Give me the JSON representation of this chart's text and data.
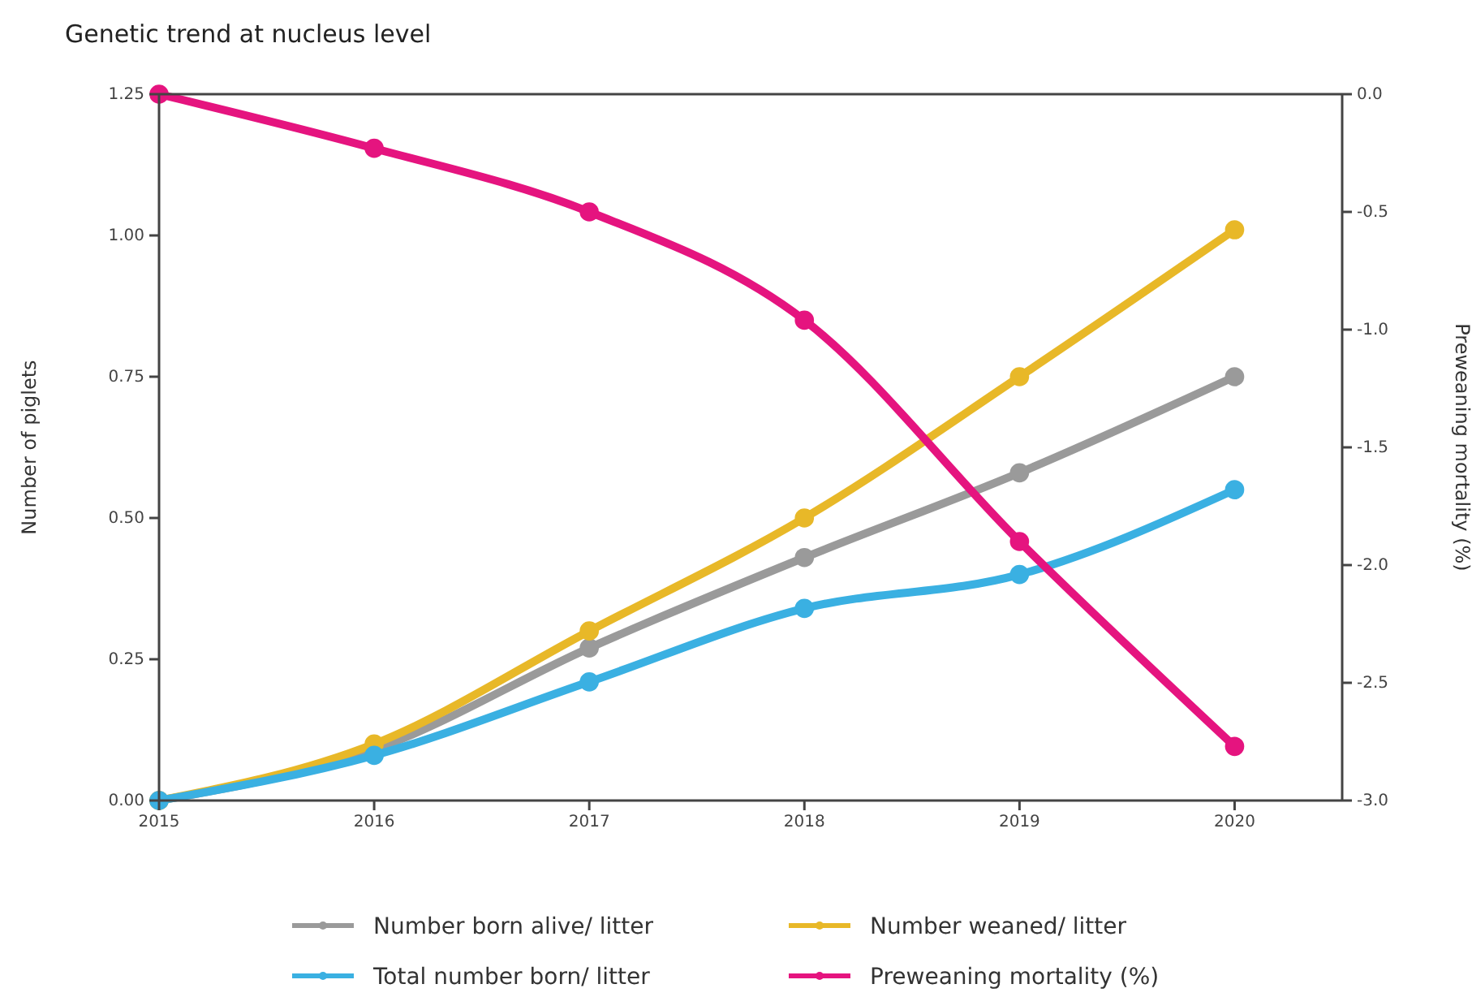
{
  "chart_data": {
    "type": "line",
    "title": "Genetic trend at nucleus level",
    "xlabel": null,
    "ylabel": "Number of piglets",
    "y2label": "Preweaning mortality (%)",
    "x": [
      2015,
      2016,
      2017,
      2018,
      2019,
      2020
    ],
    "xlim": [
      2015,
      2020.5
    ],
    "xticks": [
      2015,
      2016,
      2017,
      2018,
      2019,
      2020
    ],
    "ylim": [
      0,
      1.25
    ],
    "yticks": [
      {
        "value": 0,
        "label": "0.00"
      },
      {
        "value": 0.25,
        "label": "0.25"
      },
      {
        "value": 0.5,
        "label": "0.50"
      },
      {
        "value": 0.75,
        "label": "0.75"
      },
      {
        "value": 1,
        "label": "1.00"
      },
      {
        "value": 1.25,
        "label": "1.25"
      }
    ],
    "y2lim": [
      -3,
      0
    ],
    "y2ticks": [
      {
        "value": 0,
        "label": "0.0"
      },
      {
        "value": -0.5,
        "label": "-0.5"
      },
      {
        "value": -1,
        "label": "-1.0"
      },
      {
        "value": -1.5,
        "label": "-1.5"
      },
      {
        "value": -2,
        "label": "-2.0"
      },
      {
        "value": -2.5,
        "label": "-2.5"
      },
      {
        "value": -3,
        "label": "-3.0"
      }
    ],
    "series": [
      {
        "name": "Number born alive/ litter",
        "color": "#9a9a9a",
        "values": [
          0,
          0.09,
          0.27,
          0.43,
          0.58,
          0.75
        ]
      },
      {
        "name": "Number weaned/ litter",
        "color": "#e8b828",
        "values": [
          0,
          0.1,
          0.3,
          0.5,
          0.75,
          1.01
        ]
      },
      {
        "name": "Total number born/ litter",
        "color": "#3ab0e2",
        "values": [
          0,
          0.08,
          0.21,
          0.34,
          0.4,
          0.55
        ]
      },
      {
        "name": "Preweaning mortality (%)",
        "color": "#e5147f",
        "axis": "y2",
        "values": [
          0,
          -0.23,
          -0.5,
          -0.96,
          -1.9,
          -2.77
        ]
      }
    ],
    "marker": "circle",
    "line_style": "solid",
    "grid": false,
    "legend": "bottom"
  }
}
